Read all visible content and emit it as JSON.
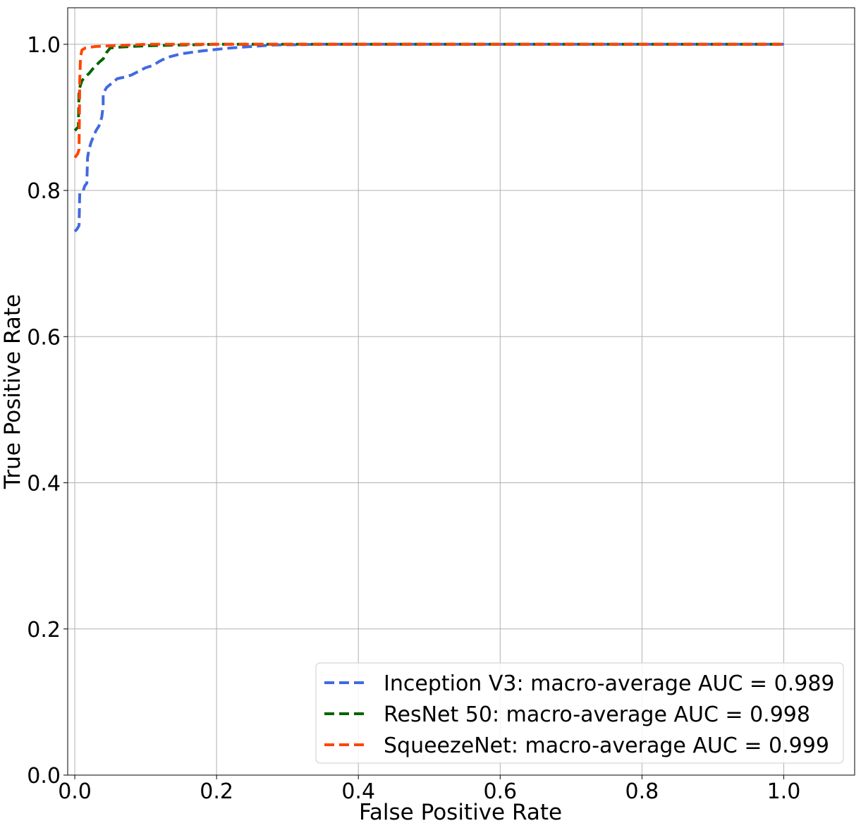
{
  "chart_data": {
    "type": "line",
    "title": "",
    "xlabel": "False Positive Rate",
    "ylabel": "True Positive Rate",
    "xlim": [
      -0.01,
      1.1
    ],
    "ylim": [
      0.0,
      1.05
    ],
    "x_ticks": [
      0.0,
      0.2,
      0.4,
      0.6,
      0.8,
      1.0
    ],
    "x_tick_labels": [
      "0.0",
      "0.2",
      "0.4",
      "0.6",
      "0.8",
      "1.0"
    ],
    "y_ticks": [
      0.0,
      0.2,
      0.4,
      0.6,
      0.8,
      1.0
    ],
    "y_tick_labels": [
      "0.0",
      "0.2",
      "0.4",
      "0.6",
      "0.8",
      "1.0"
    ],
    "grid": true,
    "legend_position": "lower-right",
    "line_style": "dashed",
    "series": [
      {
        "name": "Inception V3: macro-average AUC = 0.989",
        "color": "#4169e1",
        "x": [
          0.0,
          0.003,
          0.006,
          0.007,
          0.012,
          0.014,
          0.017,
          0.018,
          0.02,
          0.023,
          0.026,
          0.03,
          0.034,
          0.038,
          0.04,
          0.04,
          0.045,
          0.05,
          0.055,
          0.06,
          0.07,
          0.08,
          0.09,
          0.1,
          0.11,
          0.12,
          0.13,
          0.15,
          0.18,
          0.22,
          0.28,
          0.35,
          1.0
        ],
        "y": [
          0.744,
          0.747,
          0.752,
          0.797,
          0.8,
          0.806,
          0.81,
          0.845,
          0.856,
          0.866,
          0.873,
          0.882,
          0.888,
          0.9,
          0.915,
          0.933,
          0.941,
          0.945,
          0.949,
          0.953,
          0.955,
          0.958,
          0.963,
          0.968,
          0.971,
          0.977,
          0.982,
          0.987,
          0.991,
          0.995,
          0.999,
          1.0,
          1.0
        ]
      },
      {
        "name": "ResNet 50: macro-average AUC = 0.998",
        "color": "#006400",
        "x": [
          0.0,
          0.005,
          0.006,
          0.008,
          0.01,
          0.015,
          0.02,
          0.025,
          0.03,
          0.035,
          0.04,
          0.045,
          0.05,
          0.06,
          0.08,
          0.1,
          0.15,
          0.2,
          0.3,
          1.0
        ],
        "y": [
          0.882,
          0.887,
          0.938,
          0.944,
          0.95,
          0.956,
          0.96,
          0.966,
          0.971,
          0.976,
          0.98,
          0.989,
          0.995,
          0.996,
          0.997,
          0.998,
          0.999,
          1.0,
          1.0,
          1.0
        ]
      },
      {
        "name": "SqueezeNet: macro-average AUC = 0.999",
        "color": "#ff4500",
        "x": [
          0.0,
          0.004,
          0.006,
          0.007,
          0.008,
          0.01,
          0.015,
          0.02,
          0.03,
          0.05,
          0.08,
          0.1,
          0.2,
          1.0
        ],
        "y": [
          0.845,
          0.85,
          0.856,
          0.95,
          0.982,
          0.992,
          0.995,
          0.996,
          0.997,
          0.998,
          0.999,
          1.0,
          1.0,
          1.0
        ]
      }
    ]
  }
}
